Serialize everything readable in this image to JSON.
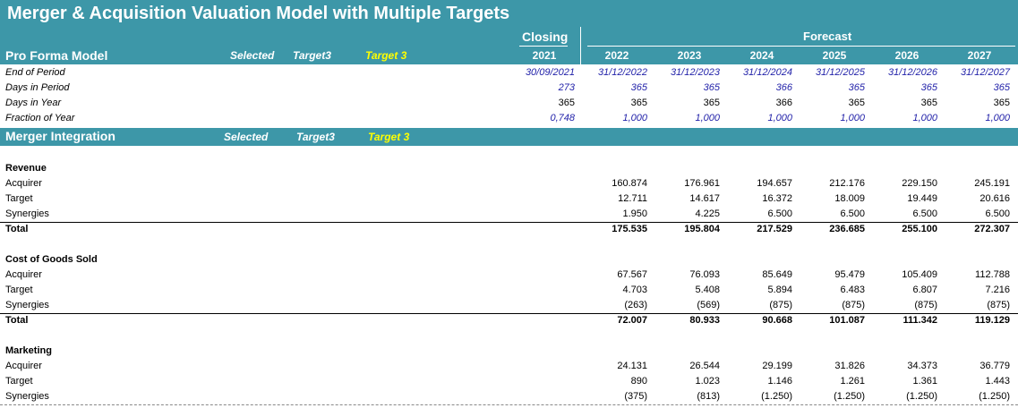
{
  "title": "Merger & Acquisition Valuation Model with Multiple Targets",
  "header": {
    "closing_label": "Closing",
    "forecast_label": "Forecast",
    "model_label": "Pro Forma Model",
    "selected_label": "Selected",
    "selected_value": "Target3",
    "selected_display": "Target 3",
    "years": [
      "2021",
      "2022",
      "2023",
      "2024",
      "2025",
      "2026",
      "2027"
    ]
  },
  "period": {
    "end_label": "End of Period",
    "days_label": "Days in Period",
    "year_days_label": "Days in Year",
    "fraction_label": "Fraction of Year",
    "end_of_period": [
      "30/09/2021",
      "31/12/2022",
      "31/12/2023",
      "31/12/2024",
      "31/12/2025",
      "31/12/2026",
      "31/12/2027"
    ],
    "days_in_period": [
      "273",
      "365",
      "365",
      "366",
      "365",
      "365",
      "365"
    ],
    "days_in_year": [
      "365",
      "365",
      "365",
      "366",
      "365",
      "365",
      "365"
    ],
    "fraction_of_year": [
      "0,748",
      "1,000",
      "1,000",
      "1,000",
      "1,000",
      "1,000",
      "1,000"
    ]
  },
  "integration": {
    "label": "Merger Integration",
    "selected_label": "Selected",
    "selected_value": "Target3",
    "selected_display": "Target 3"
  },
  "sections": [
    {
      "title": "Revenue",
      "rows": [
        {
          "label": "Acquirer",
          "values": [
            "160.874",
            "176.961",
            "194.657",
            "212.176",
            "229.150",
            "245.191"
          ]
        },
        {
          "label": "Target",
          "values": [
            "12.711",
            "14.617",
            "16.372",
            "18.009",
            "19.449",
            "20.616"
          ]
        },
        {
          "label": "Synergies",
          "values": [
            "1.950",
            "4.225",
            "6.500",
            "6.500",
            "6.500",
            "6.500"
          ]
        }
      ],
      "total": {
        "label": "Total",
        "values": [
          "175.535",
          "195.804",
          "217.529",
          "236.685",
          "255.100",
          "272.307"
        ]
      }
    },
    {
      "title": "Cost of Goods Sold",
      "rows": [
        {
          "label": "Acquirer",
          "values": [
            "67.567",
            "76.093",
            "85.649",
            "95.479",
            "105.409",
            "112.788"
          ]
        },
        {
          "label": "Target",
          "values": [
            "4.703",
            "5.408",
            "5.894",
            "6.483",
            "6.807",
            "7.216"
          ]
        },
        {
          "label": "Synergies",
          "values": [
            "(263)",
            "(569)",
            "(875)",
            "(875)",
            "(875)",
            "(875)"
          ]
        }
      ],
      "total": {
        "label": "Total",
        "values": [
          "72.007",
          "80.933",
          "90.668",
          "101.087",
          "111.342",
          "119.129"
        ]
      }
    },
    {
      "title": "Marketing",
      "rows": [
        {
          "label": "Acquirer",
          "values": [
            "24.131",
            "26.544",
            "29.199",
            "31.826",
            "34.373",
            "36.779"
          ]
        },
        {
          "label": "Target",
          "values": [
            "890",
            "1.023",
            "1.146",
            "1.261",
            "1.361",
            "1.443"
          ]
        },
        {
          "label": "Synergies",
          "values": [
            "(375)",
            "(813)",
            "(1.250)",
            "(1.250)",
            "(1.250)",
            "(1.250)"
          ]
        }
      ]
    }
  ]
}
